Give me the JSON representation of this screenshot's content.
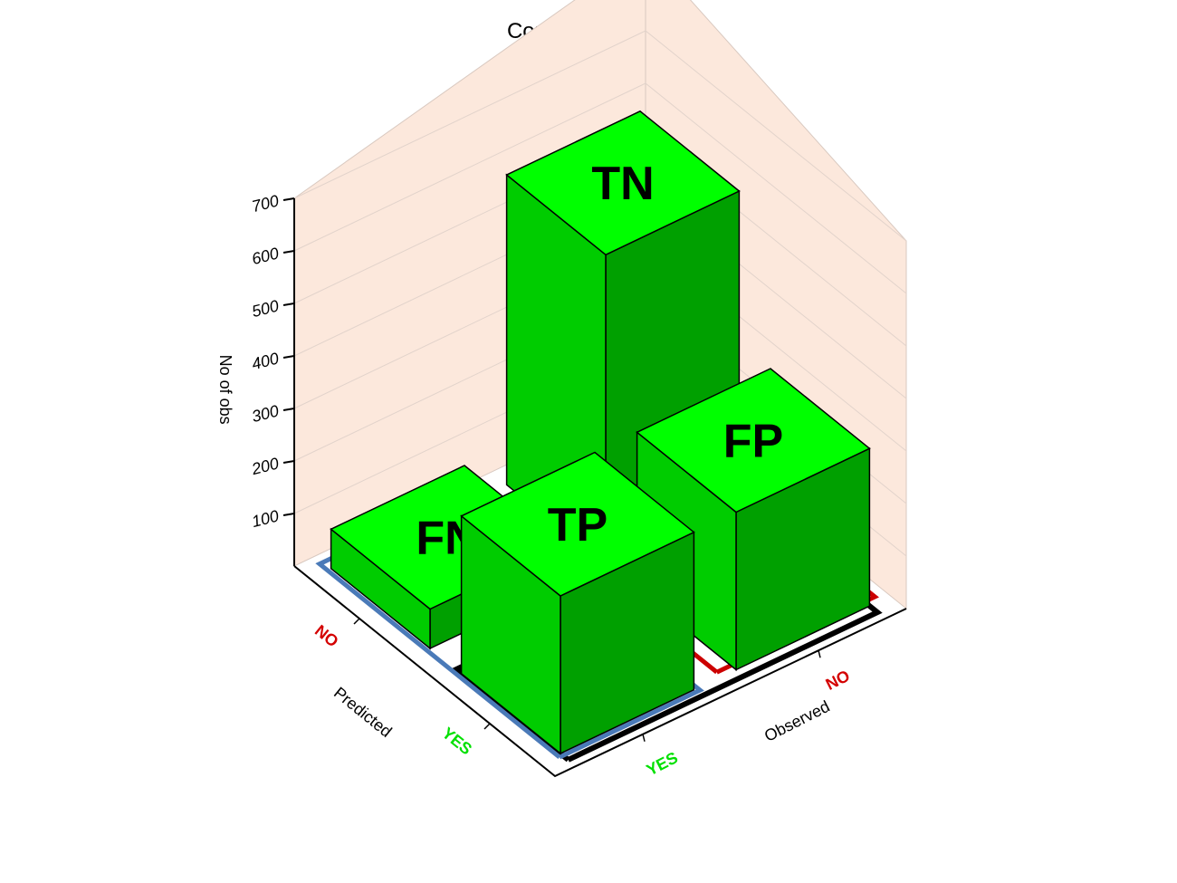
{
  "chart_data": {
    "type": "bar3d",
    "title": "Confusion Matrix",
    "zlabel": "No of obs",
    "xlabel": "Predicted",
    "ylabel": "Observed",
    "zlim": [
      0,
      700
    ],
    "z_ticks": [
      100,
      200,
      300,
      400,
      500,
      600,
      700
    ],
    "predicted_categories": [
      "NO",
      "YES"
    ],
    "observed_categories": [
      "YES",
      "NO"
    ],
    "bars": [
      {
        "label": "TN",
        "predicted": "NO",
        "observed": "NO",
        "value": 590
      },
      {
        "label": "FP",
        "predicted": "YES",
        "observed": "NO",
        "value": 300
      },
      {
        "label": "FN",
        "predicted": "NO",
        "observed": "YES",
        "value": 75
      },
      {
        "label": "TP",
        "predicted": "YES",
        "observed": "YES",
        "value": 300
      }
    ]
  },
  "colors": {
    "bar_top": "#00ff00",
    "bar_front": "#00cc00",
    "bar_side": "#00a000",
    "wall": "#fce8dc",
    "category_no": "#d40000",
    "category_yes": "#00e000",
    "outline_red": "#cc0000",
    "outline_blue": "#4a7ab8",
    "outline_black": "#000000"
  }
}
